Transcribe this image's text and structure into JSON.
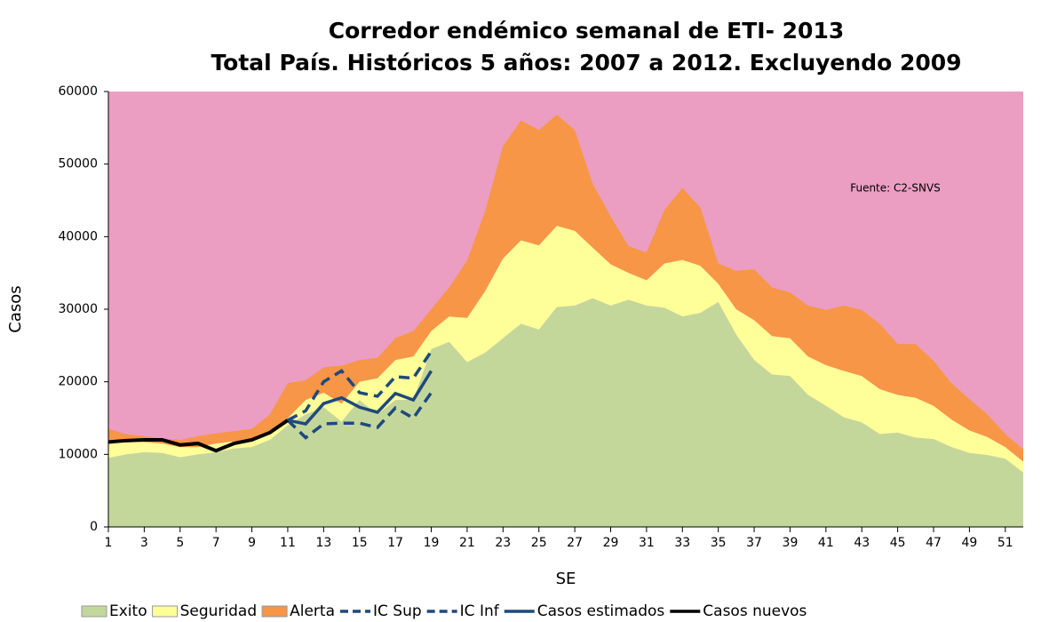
{
  "chart_data": {
    "type": "area",
    "title": [
      "Corredor endémico semanal de ETI- 2013",
      "Total País. Históricos 5 años: 2007 a 2012. Excluyendo 2009"
    ],
    "xlabel": "SE",
    "ylabel": "Casos",
    "annotation": "Fuente: C2-SNVS",
    "plot_background": "#eb9ec1",
    "x": [
      1,
      2,
      3,
      4,
      5,
      6,
      7,
      8,
      9,
      10,
      11,
      12,
      13,
      14,
      15,
      16,
      17,
      18,
      19,
      20,
      21,
      22,
      23,
      24,
      25,
      26,
      27,
      28,
      29,
      30,
      31,
      32,
      33,
      34,
      35,
      36,
      37,
      38,
      39,
      40,
      41,
      42,
      43,
      44,
      45,
      46,
      47,
      48,
      49,
      50,
      51,
      52
    ],
    "xlim": [
      1,
      52
    ],
    "xticks": [
      1,
      3,
      5,
      7,
      9,
      11,
      13,
      15,
      17,
      19,
      21,
      23,
      25,
      27,
      29,
      31,
      33,
      35,
      37,
      39,
      41,
      43,
      45,
      47,
      49,
      51
    ],
    "ylim": [
      0,
      60000
    ],
    "yticks": [
      0,
      10000,
      20000,
      30000,
      40000,
      50000,
      60000
    ],
    "series": [
      {
        "name": "Exito",
        "kind": "stack",
        "color": "#c4d79b",
        "values": [
          9500,
          10000,
          10300,
          10200,
          9600,
          10000,
          10300,
          10800,
          11000,
          12000,
          14000,
          15500,
          16500,
          14500,
          17500,
          15500,
          17500,
          17500,
          24500,
          25500,
          22700,
          24000,
          26000,
          28000,
          27200,
          30300,
          30500,
          31500,
          30500,
          31300,
          30500,
          30200,
          29000,
          29500,
          31000,
          26500,
          23000,
          21000,
          20800,
          18200,
          16700,
          15100,
          14400,
          12800,
          13000,
          12300,
          12100,
          11000,
          10200,
          9900,
          9400,
          7500
        ]
      },
      {
        "name": "Seguridad",
        "kind": "stack",
        "color": "#ffff99",
        "values": [
          2000,
          1800,
          1400,
          1300,
          1400,
          1000,
          1200,
          1000,
          1000,
          1000,
          1000,
          2000,
          2000,
          2500,
          2500,
          5000,
          5500,
          6000,
          2500,
          3500,
          6100,
          8500,
          11000,
          11500,
          11600,
          11200,
          10300,
          7000,
          5700,
          3700,
          3500,
          6100,
          7800,
          6500,
          2500,
          3500,
          5500,
          5300,
          5200,
          5300,
          5600,
          6400,
          6400,
          6200,
          5200,
          5500,
          4600,
          3800,
          3100,
          2500,
          1600,
          1500
        ]
      },
      {
        "name": "Alerta",
        "kind": "stack",
        "color": "#f79646",
        "values": [
          2000,
          1000,
          800,
          700,
          1000,
          1500,
          1400,
          1400,
          1500,
          2500,
          4800,
          2700,
          3500,
          5200,
          3000,
          2800,
          3000,
          3500,
          3000,
          4000,
          7900,
          11000,
          15500,
          16500,
          15900,
          15300,
          13900,
          8800,
          6600,
          3700,
          3800,
          7400,
          9900,
          8000,
          2800,
          5300,
          7000,
          6700,
          6300,
          7000,
          7600,
          9000,
          9100,
          9000,
          7000,
          7400,
          6200,
          5000,
          4300,
          3100,
          1800,
          1700
        ]
      },
      {
        "name": "IC Sup",
        "kind": "line",
        "dash": true,
        "color": "#1f497d",
        "values": [
          null,
          null,
          null,
          null,
          null,
          null,
          null,
          null,
          null,
          null,
          14700,
          16000,
          20000,
          21500,
          18500,
          18000,
          20700,
          20500,
          24200,
          null,
          null,
          null,
          null,
          null,
          null,
          null,
          null,
          null,
          null,
          null,
          null,
          null,
          null,
          null,
          null,
          null,
          null,
          null,
          null,
          null,
          null,
          null,
          null,
          null,
          null,
          null,
          null,
          null,
          null,
          null,
          null,
          null
        ]
      },
      {
        "name": "IC Inf",
        "kind": "line",
        "dash": true,
        "color": "#1f497d",
        "values": [
          null,
          null,
          null,
          null,
          null,
          null,
          null,
          null,
          null,
          null,
          14700,
          12300,
          14200,
          14300,
          14300,
          13700,
          16400,
          15000,
          18500,
          null,
          null,
          null,
          null,
          null,
          null,
          null,
          null,
          null,
          null,
          null,
          null,
          null,
          null,
          null,
          null,
          null,
          null,
          null,
          null,
          null,
          null,
          null,
          null,
          null,
          null,
          null,
          null,
          null,
          null,
          null,
          null,
          null
        ]
      },
      {
        "name": "Casos estimados",
        "kind": "line",
        "dash": false,
        "color": "#1f497d",
        "values": [
          null,
          null,
          null,
          null,
          null,
          null,
          null,
          null,
          null,
          null,
          14700,
          14200,
          17000,
          17800,
          16500,
          15800,
          18400,
          17500,
          21500,
          null,
          null,
          null,
          null,
          null,
          null,
          null,
          null,
          null,
          null,
          null,
          null,
          null,
          null,
          null,
          null,
          null,
          null,
          null,
          null,
          null,
          null,
          null,
          null,
          null,
          null,
          null,
          null,
          null,
          null,
          null,
          null,
          null
        ]
      },
      {
        "name": "Casos nuevos",
        "kind": "line",
        "dash": false,
        "color": "#000000",
        "values": [
          11700,
          11900,
          12000,
          12000,
          11300,
          11500,
          10500,
          11500,
          12000,
          13000,
          14700,
          null,
          null,
          null,
          null,
          null,
          null,
          null,
          null,
          null,
          null,
          null,
          null,
          null,
          null,
          null,
          null,
          null,
          null,
          null,
          null,
          null,
          null,
          null,
          null,
          null,
          null,
          null,
          null,
          null,
          null,
          null,
          null,
          null,
          null,
          null,
          null,
          null,
          null,
          null,
          null,
          null
        ]
      }
    ]
  }
}
